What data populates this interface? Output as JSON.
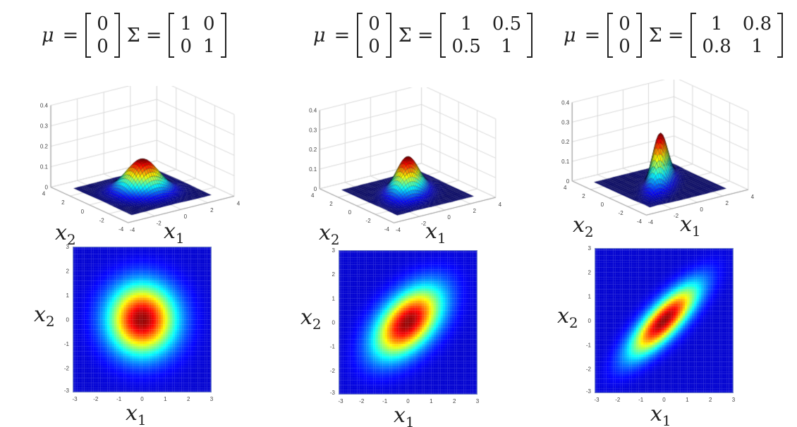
{
  "symbols": {
    "mu": "μ",
    "sigma": "Σ",
    "equals": "="
  },
  "axis_labels": {
    "x1": {
      "base": "x",
      "sub": "1"
    },
    "x2": {
      "base": "x",
      "sub": "2"
    }
  },
  "colormap": "jet",
  "panels": [
    {
      "mu": [
        "0",
        "0"
      ],
      "sigma": [
        [
          "1",
          "0"
        ],
        [
          "0",
          "1"
        ]
      ]
    },
    {
      "mu": [
        "0",
        "0"
      ],
      "sigma": [
        [
          "1",
          "0.5"
        ],
        [
          "0.5",
          "1"
        ]
      ]
    },
    {
      "mu": [
        "0",
        "0"
      ],
      "sigma": [
        [
          "1",
          "0.8"
        ],
        [
          "0.8",
          "1"
        ]
      ]
    }
  ],
  "chart_data": [
    {
      "type": "surface",
      "panel": 0,
      "distribution": "bivariate normal",
      "mu": [
        0,
        0
      ],
      "sigma": [
        [
          1,
          0
        ],
        [
          0,
          1
        ]
      ],
      "xlim": [
        -4,
        4
      ],
      "ylim": [
        -4,
        4
      ],
      "zlim": [
        0,
        0.4
      ],
      "xticks": [
        "-4",
        "-2",
        "0",
        "2",
        "4"
      ],
      "yticks": [
        "-4",
        "-2",
        "0",
        "2",
        "4"
      ],
      "zticks": [
        "0",
        "0.1",
        "0.2",
        "0.3",
        "0.4"
      ],
      "xlabel": "x1",
      "ylabel": "x2",
      "grid": true
    },
    {
      "type": "surface",
      "panel": 1,
      "distribution": "bivariate normal",
      "mu": [
        0,
        0
      ],
      "sigma": [
        [
          1,
          0.5
        ],
        [
          0.5,
          1
        ]
      ],
      "xlim": [
        -4,
        4
      ],
      "ylim": [
        -4,
        4
      ],
      "zlim": [
        0,
        0.4
      ],
      "xticks": [
        "-4",
        "-2",
        "0",
        "2",
        "4"
      ],
      "yticks": [
        "-4",
        "-2",
        "0",
        "2",
        "4"
      ],
      "zticks": [
        "0",
        "0.1",
        "0.2",
        "0.3",
        "0.4"
      ],
      "xlabel": "x1",
      "ylabel": "x2",
      "grid": true
    },
    {
      "type": "surface",
      "panel": 2,
      "distribution": "bivariate normal",
      "mu": [
        0,
        0
      ],
      "sigma": [
        [
          1,
          0.8
        ],
        [
          0.8,
          1
        ]
      ],
      "xlim": [
        -4,
        4
      ],
      "ylim": [
        -4,
        4
      ],
      "zlim": [
        0,
        0.4
      ],
      "xticks": [
        "-4",
        "-2",
        "0",
        "2",
        "4"
      ],
      "yticks": [
        "-4",
        "-2",
        "0",
        "2",
        "4"
      ],
      "zticks": [
        "0",
        "0.1",
        "0.2",
        "0.3",
        "0.4"
      ],
      "xlabel": "x1",
      "ylabel": "x2",
      "grid": true
    },
    {
      "type": "heatmap",
      "panel": 0,
      "mu": [
        0,
        0
      ],
      "sigma": [
        [
          1,
          0
        ],
        [
          0,
          1
        ]
      ],
      "xlim": [
        -3,
        3
      ],
      "ylim": [
        -3,
        3
      ],
      "ticks": [
        "-3",
        "-2",
        "-1",
        "0",
        "1",
        "2",
        "3"
      ],
      "xlabel": "x1",
      "ylabel": "x2"
    },
    {
      "type": "heatmap",
      "panel": 1,
      "mu": [
        0,
        0
      ],
      "sigma": [
        [
          1,
          0.5
        ],
        [
          0.5,
          1
        ]
      ],
      "xlim": [
        -3,
        3
      ],
      "ylim": [
        -3,
        3
      ],
      "ticks": [
        "-3",
        "-2",
        "-1",
        "0",
        "1",
        "2",
        "3"
      ],
      "xlabel": "x1",
      "ylabel": "x2"
    },
    {
      "type": "heatmap",
      "panel": 2,
      "mu": [
        0,
        0
      ],
      "sigma": [
        [
          1,
          0.8
        ],
        [
          0.8,
          1
        ]
      ],
      "xlim": [
        -3,
        3
      ],
      "ylim": [
        -3,
        3
      ],
      "ticks": [
        "-3",
        "-2",
        "-1",
        "0",
        "1",
        "2",
        "3"
      ],
      "xlabel": "x1",
      "ylabel": "x2"
    }
  ]
}
